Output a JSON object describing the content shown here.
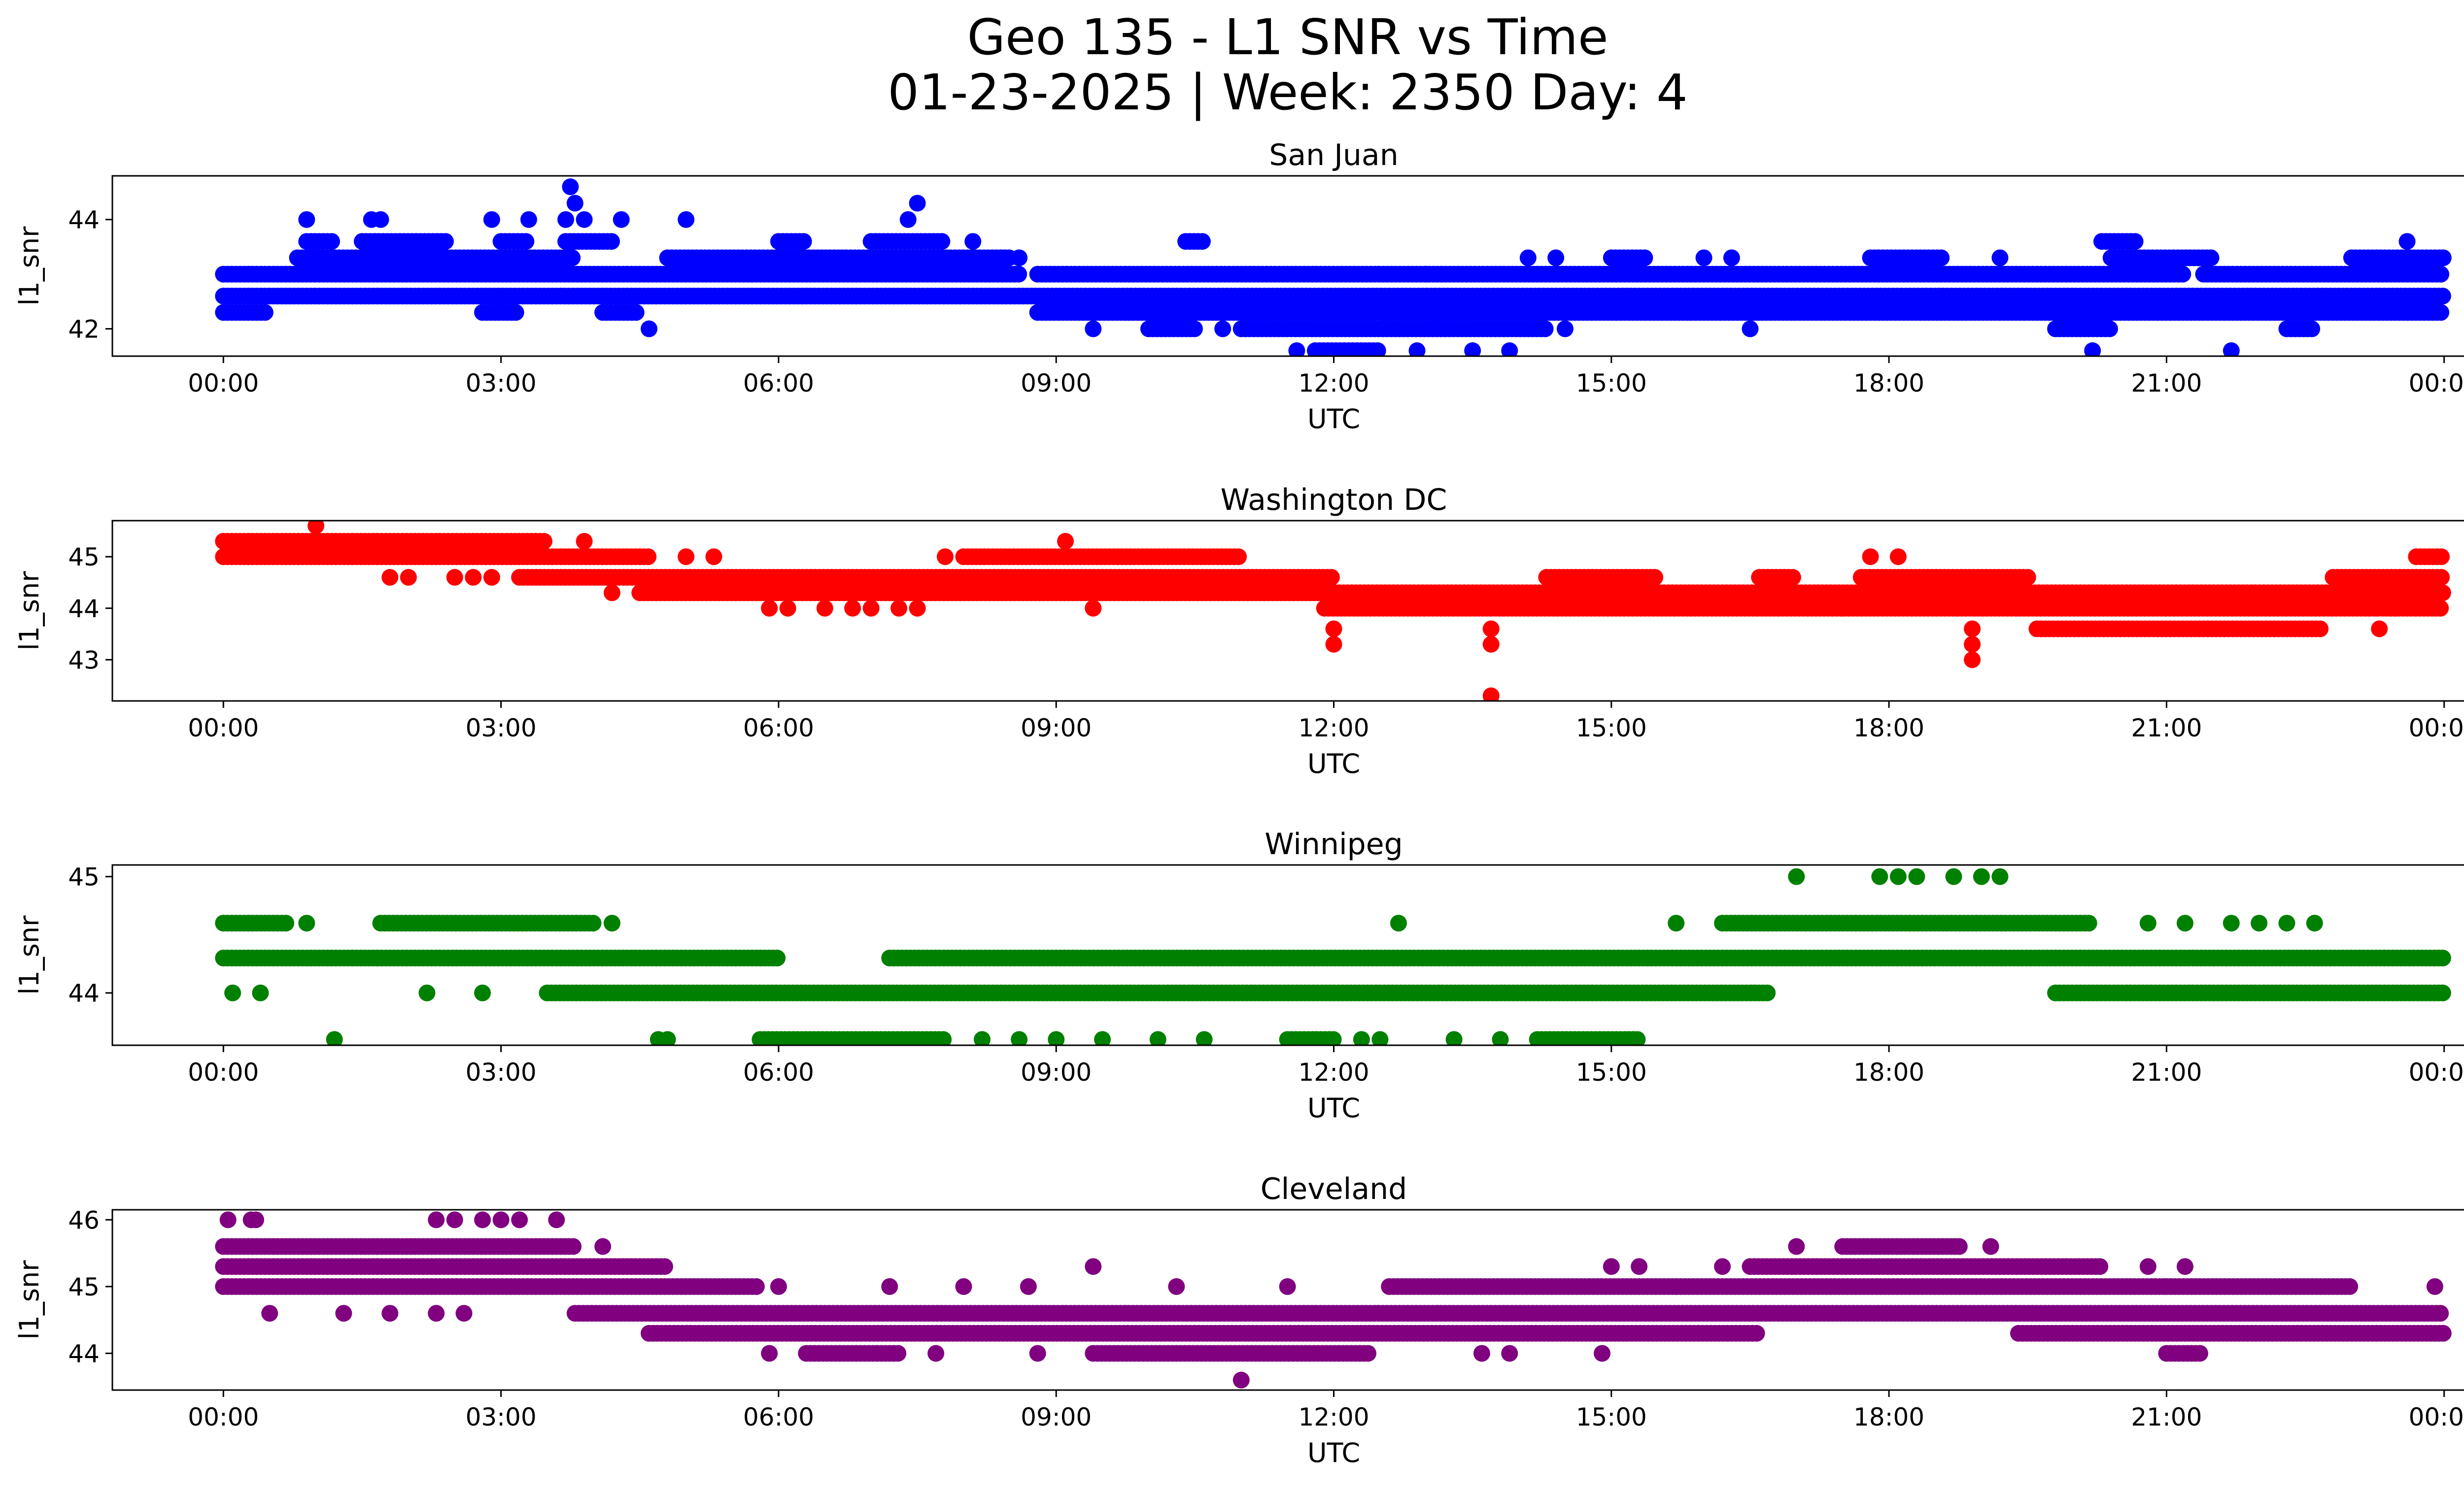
{
  "chart_data": {
    "type": "scatter",
    "title": "Geo 135 - L1 SNR vs Time",
    "subtitle": "01-23-2025 | Week: 2350 Day: 4",
    "subplots": [
      {
        "title": "San Juan",
        "xlabel": "UTC",
        "ylabel": "l1_snr",
        "color": "#0000ff",
        "xlim": [
          -1.2,
          25.2
        ],
        "ylim": [
          41.5,
          44.8
        ],
        "yticks": [
          42,
          44
        ],
        "xticks": [
          "00:00",
          "03:00",
          "06:00",
          "09:00",
          "12:00",
          "15:00",
          "18:00",
          "21:00",
          "00:00"
        ],
        "bands": [
          {
            "y": 43.0,
            "segments": [
              [
                0,
                8.6
              ],
              [
                8.8,
                21.2
              ],
              [
                21.4,
                24
              ]
            ]
          },
          {
            "y": 42.6,
            "segments": [
              [
                0,
                24
              ]
            ]
          },
          {
            "y": 42.3,
            "segments": [
              [
                0,
                0.45
              ],
              [
                2.8,
                3.2
              ],
              [
                4.1,
                4.5
              ],
              [
                8.8,
                24
              ]
            ]
          },
          {
            "y": 43.3,
            "segments": [
              [
                0.8,
                3.8
              ],
              [
                4.8,
                8.5
              ],
              [
                15.0,
                15.4
              ],
              [
                17.8,
                18.6
              ],
              [
                20.4,
                21.5
              ],
              [
                23.0,
                24
              ]
            ]
          },
          {
            "y": 43.6,
            "segments": [
              [
                0.9,
                1.2
              ],
              [
                1.5,
                2.4
              ],
              [
                3.0,
                3.3
              ],
              [
                3.7,
                4.2
              ],
              [
                6.0,
                6.3
              ],
              [
                7.0,
                7.8
              ],
              [
                10.4,
                10.6
              ],
              [
                20.3,
                20.7
              ]
            ]
          },
          {
            "y": 42.0,
            "segments": [
              [
                10.0,
                10.5
              ],
              [
                11.0,
                14.3
              ],
              [
                19.8,
                20.4
              ],
              [
                22.3,
                22.6
              ]
            ]
          },
          {
            "y": 41.6,
            "segments": [
              [
                11.8,
                12.5
              ]
            ]
          }
        ],
        "points": [
          {
            "x": 0.9,
            "y": 44.0
          },
          {
            "x": 1.6,
            "y": 44.0
          },
          {
            "x": 1.7,
            "y": 44.0
          },
          {
            "x": 2.9,
            "y": 44.0
          },
          {
            "x": 3.3,
            "y": 44.0
          },
          {
            "x": 3.7,
            "y": 44.0
          },
          {
            "x": 3.8,
            "y": 44.3
          },
          {
            "x": 3.75,
            "y": 44.6
          },
          {
            "x": 3.9,
            "y": 44.0
          },
          {
            "x": 4.3,
            "y": 44.0
          },
          {
            "x": 5.0,
            "y": 44.0
          },
          {
            "x": 7.4,
            "y": 44.0
          },
          {
            "x": 7.5,
            "y": 44.3
          },
          {
            "x": 8.1,
            "y": 43.6
          },
          {
            "x": 8.6,
            "y": 43.3
          },
          {
            "x": 4.6,
            "y": 42.0
          },
          {
            "x": 9.4,
            "y": 42.0
          },
          {
            "x": 10.8,
            "y": 42.0
          },
          {
            "x": 11.6,
            "y": 41.6
          },
          {
            "x": 12.9,
            "y": 41.6
          },
          {
            "x": 13.0,
            "y": 43.0
          },
          {
            "x": 13.5,
            "y": 41.6
          },
          {
            "x": 13.9,
            "y": 41.6
          },
          {
            "x": 14.5,
            "y": 42.0
          },
          {
            "x": 14.1,
            "y": 43.3
          },
          {
            "x": 14.4,
            "y": 43.3
          },
          {
            "x": 16.0,
            "y": 43.3
          },
          {
            "x": 16.3,
            "y": 43.3
          },
          {
            "x": 16.5,
            "y": 42.0
          },
          {
            "x": 19.2,
            "y": 43.3
          },
          {
            "x": 20.2,
            "y": 41.6
          },
          {
            "x": 21.7,
            "y": 41.6
          },
          {
            "x": 23.6,
            "y": 43.6
          }
        ]
      },
      {
        "title": "Washington DC",
        "xlabel": "UTC",
        "ylabel": "l1_snr",
        "color": "#ff0000",
        "xlim": [
          -1.2,
          25.2
        ],
        "ylim": [
          42.2,
          45.7
        ],
        "yticks": [
          43,
          44,
          45
        ],
        "xticks": [
          "00:00",
          "03:00",
          "06:00",
          "09:00",
          "12:00",
          "15:00",
          "18:00",
          "21:00",
          "00:00"
        ],
        "bands": [
          {
            "y": 45.3,
            "segments": [
              [
                0,
                3.5
              ]
            ]
          },
          {
            "y": 45.0,
            "segments": [
              [
                0,
                4.6
              ],
              [
                8.0,
                11.0
              ],
              [
                23.7,
                24
              ]
            ]
          },
          {
            "y": 44.6,
            "segments": [
              [
                3.2,
                12.0
              ],
              [
                14.3,
                15.5
              ],
              [
                16.6,
                17.0
              ],
              [
                17.7,
                19.5
              ],
              [
                22.8,
                24
              ]
            ]
          },
          {
            "y": 44.3,
            "segments": [
              [
                4.5,
                24
              ]
            ]
          },
          {
            "y": 44.0,
            "segments": [
              [
                11.9,
                24
              ]
            ]
          },
          {
            "y": 43.6,
            "segments": [
              [
                19.6,
                22.7
              ]
            ]
          }
        ],
        "points": [
          {
            "x": 1.0,
            "y": 45.6
          },
          {
            "x": 1.8,
            "y": 44.6
          },
          {
            "x": 2.0,
            "y": 44.6
          },
          {
            "x": 2.5,
            "y": 44.6
          },
          {
            "x": 2.7,
            "y": 44.6
          },
          {
            "x": 2.9,
            "y": 44.6
          },
          {
            "x": 3.9,
            "y": 45.3
          },
          {
            "x": 4.2,
            "y": 44.3
          },
          {
            "x": 5.0,
            "y": 45.0
          },
          {
            "x": 5.3,
            "y": 45.0
          },
          {
            "x": 5.9,
            "y": 44.0
          },
          {
            "x": 6.1,
            "y": 44.0
          },
          {
            "x": 6.5,
            "y": 44.0
          },
          {
            "x": 6.8,
            "y": 44.0
          },
          {
            "x": 7.0,
            "y": 44.0
          },
          {
            "x": 7.3,
            "y": 44.0
          },
          {
            "x": 7.5,
            "y": 44.0
          },
          {
            "x": 7.8,
            "y": 45.0
          },
          {
            "x": 9.1,
            "y": 45.3
          },
          {
            "x": 9.4,
            "y": 44.0
          },
          {
            "x": 12.0,
            "y": 43.6
          },
          {
            "x": 12.0,
            "y": 43.3
          },
          {
            "x": 13.7,
            "y": 43.6
          },
          {
            "x": 13.7,
            "y": 43.3
          },
          {
            "x": 13.7,
            "y": 42.3
          },
          {
            "x": 17.5,
            "y": 44.0
          },
          {
            "x": 17.8,
            "y": 45.0
          },
          {
            "x": 18.1,
            "y": 45.0
          },
          {
            "x": 18.9,
            "y": 43.6
          },
          {
            "x": 18.9,
            "y": 43.3
          },
          {
            "x": 18.9,
            "y": 43.0
          },
          {
            "x": 23.3,
            "y": 43.6
          }
        ]
      },
      {
        "title": "Winnipeg",
        "xlabel": "UTC",
        "ylabel": "l1_snr",
        "color": "#008000",
        "xlim": [
          -1.2,
          25.2
        ],
        "ylim": [
          43.55,
          45.1
        ],
        "yticks": [
          44,
          45
        ],
        "xticks": [
          "00:00",
          "03:00",
          "06:00",
          "09:00",
          "12:00",
          "15:00",
          "18:00",
          "21:00",
          "00:00"
        ],
        "bands": [
          {
            "y": 44.6,
            "segments": [
              [
                0,
                0.7
              ],
              [
                1.7,
                4.0
              ],
              [
                16.2,
                20.2
              ]
            ]
          },
          {
            "y": 44.3,
            "segments": [
              [
                0,
                6.0
              ],
              [
                7.2,
                24
              ]
            ]
          },
          {
            "y": 44.0,
            "segments": [
              [
                3.5,
                16.7
              ],
              [
                19.8,
                24
              ]
            ]
          },
          {
            "y": 43.6,
            "segments": [
              [
                5.8,
                7.8
              ],
              [
                11.5,
                12.0
              ],
              [
                14.2,
                15.3
              ]
            ]
          }
        ],
        "points": [
          {
            "x": 1.2,
            "y": 43.6
          },
          {
            "x": 4.7,
            "y": 43.6
          },
          {
            "x": 4.8,
            "y": 43.6
          },
          {
            "x": 8.2,
            "y": 43.6
          },
          {
            "x": 8.6,
            "y": 43.6
          },
          {
            "x": 9.0,
            "y": 43.6
          },
          {
            "x": 9.5,
            "y": 43.6
          },
          {
            "x": 10.1,
            "y": 43.6
          },
          {
            "x": 10.6,
            "y": 43.6
          },
          {
            "x": 12.3,
            "y": 43.6
          },
          {
            "x": 12.5,
            "y": 43.6
          },
          {
            "x": 13.3,
            "y": 43.6
          },
          {
            "x": 13.8,
            "y": 43.6
          },
          {
            "x": 0.1,
            "y": 44.0
          },
          {
            "x": 0.4,
            "y": 44.0
          },
          {
            "x": 2.2,
            "y": 44.0
          },
          {
            "x": 2.8,
            "y": 44.0
          },
          {
            "x": 0.9,
            "y": 44.6
          },
          {
            "x": 4.2,
            "y": 44.6
          },
          {
            "x": 12.7,
            "y": 44.6
          },
          {
            "x": 15.7,
            "y": 44.6
          },
          {
            "x": 20.8,
            "y": 44.6
          },
          {
            "x": 21.2,
            "y": 44.6
          },
          {
            "x": 21.7,
            "y": 44.6
          },
          {
            "x": 22.0,
            "y": 44.6
          },
          {
            "x": 22.3,
            "y": 44.6
          },
          {
            "x": 22.6,
            "y": 44.6
          },
          {
            "x": 17.0,
            "y": 45.0
          },
          {
            "x": 17.9,
            "y": 45.0
          },
          {
            "x": 18.1,
            "y": 45.0
          },
          {
            "x": 18.3,
            "y": 45.0
          },
          {
            "x": 18.7,
            "y": 45.0
          },
          {
            "x": 19.0,
            "y": 45.0
          },
          {
            "x": 19.2,
            "y": 45.0
          }
        ]
      },
      {
        "title": "Cleveland",
        "xlabel": "UTC",
        "ylabel": "l1_snr",
        "color": "#800080",
        "xlim": [
          -1.2,
          25.2
        ],
        "ylim": [
          43.45,
          46.15
        ],
        "yticks": [
          44,
          45,
          46
        ],
        "xticks": [
          "00:00",
          "03:00",
          "06:00",
          "09:00",
          "12:00",
          "15:00",
          "18:00",
          "21:00",
          "00:00"
        ],
        "bands": [
          {
            "y": 45.6,
            "segments": [
              [
                0,
                3.8
              ],
              [
                17.5,
                18.8
              ]
            ]
          },
          {
            "y": 45.3,
            "segments": [
              [
                0,
                4.8
              ],
              [
                16.5,
                20.3
              ]
            ]
          },
          {
            "y": 45.0,
            "segments": [
              [
                0,
                5.8
              ],
              [
                12.6,
                21.0
              ],
              [
                21.0,
                23.0
              ]
            ]
          },
          {
            "y": 44.6,
            "segments": [
              [
                3.8,
                24
              ]
            ]
          },
          {
            "y": 44.3,
            "segments": [
              [
                4.6,
                16.6
              ],
              [
                19.4,
                24
              ]
            ]
          },
          {
            "y": 44.0,
            "segments": [
              [
                6.3,
                7.3
              ],
              [
                9.4,
                12.4
              ],
              [
                21.0,
                21.4
              ]
            ]
          }
        ],
        "points": [
          {
            "x": 0.05,
            "y": 46.0
          },
          {
            "x": 0.3,
            "y": 46.0
          },
          {
            "x": 0.35,
            "y": 46.0
          },
          {
            "x": 2.3,
            "y": 46.0
          },
          {
            "x": 2.5,
            "y": 46.0
          },
          {
            "x": 2.8,
            "y": 46.0
          },
          {
            "x": 3.0,
            "y": 46.0
          },
          {
            "x": 3.2,
            "y": 46.0
          },
          {
            "x": 3.6,
            "y": 46.0
          },
          {
            "x": 0.5,
            "y": 44.6
          },
          {
            "x": 1.3,
            "y": 44.6
          },
          {
            "x": 1.8,
            "y": 44.6
          },
          {
            "x": 2.3,
            "y": 44.6
          },
          {
            "x": 2.6,
            "y": 44.6
          },
          {
            "x": 4.1,
            "y": 45.6
          },
          {
            "x": 5.9,
            "y": 44.0
          },
          {
            "x": 6.0,
            "y": 45.0
          },
          {
            "x": 7.2,
            "y": 45.0
          },
          {
            "x": 7.7,
            "y": 44.0
          },
          {
            "x": 8.0,
            "y": 45.0
          },
          {
            "x": 8.7,
            "y": 45.0
          },
          {
            "x": 8.8,
            "y": 44.0
          },
          {
            "x": 9.4,
            "y": 45.3
          },
          {
            "x": 10.3,
            "y": 45.0
          },
          {
            "x": 11.0,
            "y": 43.6
          },
          {
            "x": 11.5,
            "y": 45.0
          },
          {
            "x": 13.6,
            "y": 44.0
          },
          {
            "x": 13.9,
            "y": 44.0
          },
          {
            "x": 14.9,
            "y": 44.0
          },
          {
            "x": 15.0,
            "y": 45.3
          },
          {
            "x": 15.3,
            "y": 45.3
          },
          {
            "x": 15.7,
            "y": 45.0
          },
          {
            "x": 16.2,
            "y": 45.3
          },
          {
            "x": 17.0,
            "y": 45.6
          },
          {
            "x": 19.1,
            "y": 45.6
          },
          {
            "x": 21.2,
            "y": 45.3
          },
          {
            "x": 20.8,
            "y": 45.3
          },
          {
            "x": 23.9,
            "y": 45.0
          }
        ]
      }
    ]
  }
}
